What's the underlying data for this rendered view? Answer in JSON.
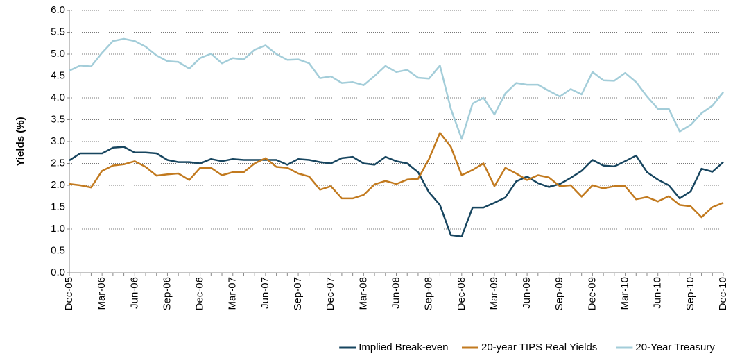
{
  "chart_data": {
    "type": "line",
    "y_label": "Yields (%)",
    "categories": [
      "Dec-05",
      null,
      null,
      "Mar-06",
      null,
      null,
      "Jun-06",
      null,
      null,
      "Sep-06",
      null,
      null,
      "Dec-06",
      null,
      null,
      "Mar-07",
      null,
      null,
      "Jun-07",
      null,
      null,
      "Sep-07",
      null,
      null,
      "Dec-07",
      null,
      null,
      "Mar-08",
      null,
      null,
      "Jun-08",
      null,
      null,
      "Sep-08",
      null,
      null,
      "Dec-08",
      null,
      null,
      "Mar-09",
      null,
      null,
      "Jun-09",
      null,
      null,
      "Sep-09",
      null,
      null,
      "Dec-09",
      null,
      null,
      "Mar-10",
      null,
      null,
      "Jun-10",
      null,
      null,
      "Sep-10",
      null,
      null,
      "Dec-10"
    ],
    "series": [
      {
        "name": "Implied Break-even",
        "color": "#17455f",
        "values": [
          2.57,
          2.73,
          2.73,
          2.73,
          2.86,
          2.88,
          2.75,
          2.75,
          2.73,
          2.58,
          2.53,
          2.53,
          2.5,
          2.6,
          2.55,
          2.6,
          2.58,
          2.58,
          2.58,
          2.58,
          2.47,
          2.6,
          2.58,
          2.53,
          2.5,
          2.62,
          2.65,
          2.5,
          2.47,
          2.65,
          2.55,
          2.5,
          2.3,
          1.84,
          1.55,
          0.86,
          0.83,
          1.49,
          1.49,
          1.6,
          1.72,
          2.09,
          2.2,
          2.05,
          1.96,
          2.03,
          2.17,
          2.33,
          2.58,
          2.45,
          2.43,
          2.55,
          2.68,
          2.3,
          2.13,
          2.0,
          1.7,
          1.86,
          2.38,
          2.31,
          2.53
        ]
      },
      {
        "name": "20-year TIPS Real Yields",
        "color": "#c27a1f",
        "values": [
          2.03,
          2.0,
          1.95,
          2.33,
          2.45,
          2.48,
          2.55,
          2.42,
          2.22,
          2.25,
          2.27,
          2.12,
          2.4,
          2.4,
          2.23,
          2.3,
          2.3,
          2.5,
          2.62,
          2.42,
          2.4,
          2.27,
          2.2,
          1.9,
          1.98,
          1.7,
          1.7,
          1.78,
          2.02,
          2.1,
          2.03,
          2.13,
          2.15,
          2.6,
          3.2,
          2.88,
          2.23,
          2.35,
          2.5,
          1.98,
          2.4,
          2.27,
          2.12,
          2.23,
          2.18,
          1.98,
          2.0,
          1.74,
          2.0,
          1.93,
          1.98,
          1.98,
          1.68,
          1.73,
          1.63,
          1.75,
          1.55,
          1.52,
          1.27,
          1.5,
          1.6
        ]
      },
      {
        "name": "20-Year Treasury",
        "color": "#a3cdd9",
        "values": [
          4.62,
          4.74,
          4.72,
          5.03,
          5.3,
          5.35,
          5.3,
          5.17,
          4.97,
          4.84,
          4.82,
          4.67,
          4.91,
          5.01,
          4.79,
          4.91,
          4.88,
          5.1,
          5.2,
          5.0,
          4.87,
          4.88,
          4.79,
          4.45,
          4.49,
          4.34,
          4.36,
          4.29,
          4.5,
          4.73,
          4.59,
          4.64,
          4.46,
          4.44,
          4.74,
          3.75,
          3.06,
          3.87,
          4.0,
          3.62,
          4.1,
          4.34,
          4.3,
          4.3,
          4.16,
          4.03,
          4.2,
          4.08,
          4.59,
          4.4,
          4.39,
          4.57,
          4.36,
          4.03,
          3.75,
          3.75,
          3.23,
          3.38,
          3.65,
          3.82,
          4.13
        ]
      }
    ],
    "ylim": [
      0,
      6
    ],
    "yticks": [
      {
        "value": 0,
        "label": "0.0"
      },
      0.5,
      {
        "value": 1,
        "label": "1.0"
      },
      1.5,
      {
        "value": 2,
        "label": "2.0"
      },
      2.5,
      {
        "value": 3,
        "label": "3.0"
      },
      3.5,
      {
        "value": 4,
        "label": "4.0"
      },
      4.5,
      {
        "value": 5,
        "label": "5.0"
      },
      5.5,
      {
        "value": 6,
        "label": "6.0"
      }
    ],
    "grid": true,
    "legend": "bottom-right"
  }
}
